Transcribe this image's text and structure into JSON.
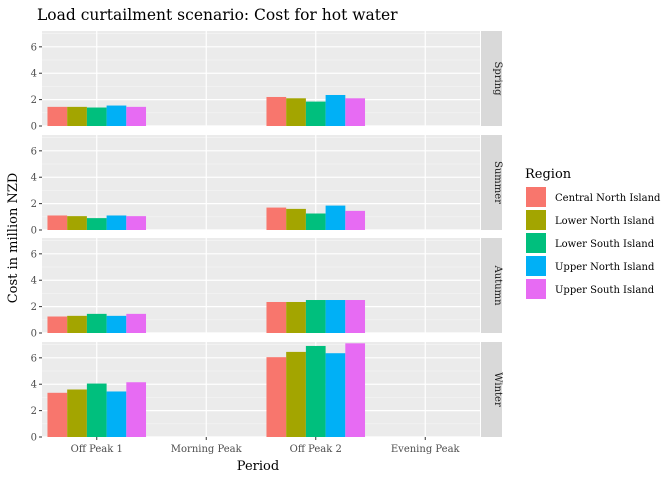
{
  "chart_data": {
    "type": "bar",
    "title": "Load curtailment scenario: Cost for hot water",
    "xlabel": "Period",
    "ylabel": "Cost in million NZD",
    "categories": [
      "Off Peak 1",
      "Morning Peak",
      "Off Peak 2",
      "Evening Peak"
    ],
    "ylim": [
      0,
      7.2
    ],
    "yticks": [
      0,
      2,
      4,
      6
    ],
    "ytick_labels": [
      "0",
      "2",
      "4",
      "6"
    ],
    "legend_title": "Region",
    "legend_position": "right",
    "grid": true,
    "series": [
      {
        "name": "Central North Island",
        "color": "#F8766D"
      },
      {
        "name": "Lower North Island",
        "color": "#A3A500"
      },
      {
        "name": "Lower South Island",
        "color": "#00BF7D"
      },
      {
        "name": "Upper North Island",
        "color": "#00B0F6"
      },
      {
        "name": "Upper South Island",
        "color": "#E76BF3"
      }
    ],
    "facets": [
      {
        "label": "Spring",
        "values": [
          [
            1.45,
            1.45,
            1.4,
            1.55,
            1.45
          ],
          [
            null,
            null,
            null,
            null,
            null
          ],
          [
            2.2,
            2.1,
            1.85,
            2.35,
            2.1
          ],
          [
            null,
            null,
            null,
            null,
            null
          ]
        ]
      },
      {
        "label": "Summer",
        "values": [
          [
            1.1,
            1.05,
            0.9,
            1.1,
            1.05
          ],
          [
            null,
            null,
            null,
            null,
            null
          ],
          [
            1.7,
            1.6,
            1.25,
            1.85,
            1.45
          ],
          [
            null,
            null,
            null,
            null,
            null
          ]
        ]
      },
      {
        "label": "Autumn",
        "values": [
          [
            1.25,
            1.3,
            1.45,
            1.3,
            1.45
          ],
          [
            null,
            null,
            null,
            null,
            null
          ],
          [
            2.35,
            2.35,
            2.5,
            2.5,
            2.5
          ],
          [
            null,
            null,
            null,
            null,
            null
          ]
        ]
      },
      {
        "label": "Winter",
        "values": [
          [
            3.35,
            3.6,
            4.05,
            3.45,
            4.15
          ],
          [
            null,
            null,
            null,
            null,
            null
          ],
          [
            6.05,
            6.45,
            6.9,
            6.35,
            7.1
          ],
          [
            null,
            null,
            null,
            null,
            null
          ]
        ]
      }
    ]
  }
}
